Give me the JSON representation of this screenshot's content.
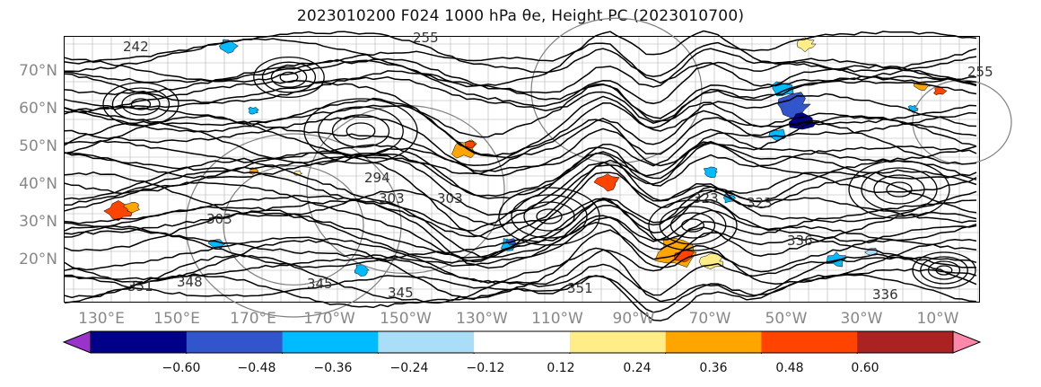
{
  "title": "2023010200 F024 1000 hPa θe, Height PC (2023010700)",
  "map": {
    "lat_labels": [
      "70°N",
      "60°N",
      "50°N",
      "40°N",
      "30°N",
      "20°N"
    ],
    "lon_labels": [
      "130°E",
      "150°E",
      "170°E",
      "170°W",
      "150°W",
      "130°W",
      "110°W",
      "90°W",
      "70°W",
      "50°W",
      "30°W",
      "10°W"
    ],
    "contour_labels": [
      "242",
      "255",
      "255",
      "303",
      "294",
      "303",
      "303",
      "323",
      "323",
      "348",
      "351",
      "345",
      "345",
      "336",
      "336",
      "351"
    ],
    "colors": {
      "background": "#ffffff",
      "contour": "#000000",
      "height_contour": "#7f7f7f",
      "grid": "#b0b0b0"
    }
  },
  "colorbar": {
    "tick_labels": [
      "−0.60",
      "−0.48",
      "−0.36",
      "−0.24",
      "−0.12",
      "0.12",
      "0.24",
      "0.36",
      "0.48",
      "0.60"
    ],
    "colors": [
      "#9933cc",
      "#000088",
      "#3355cc",
      "#00bbff",
      "#aaddf8",
      "#ffffff",
      "#ffee88",
      "#ffa500",
      "#ff4400",
      "#aa2222",
      "#ff88aa"
    ]
  }
}
